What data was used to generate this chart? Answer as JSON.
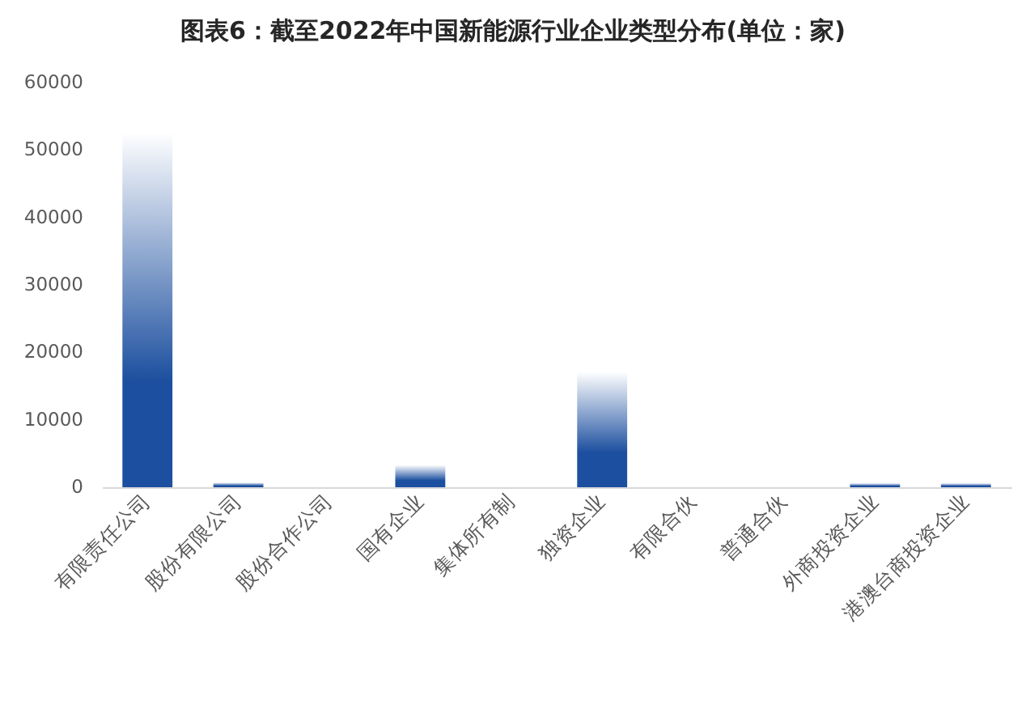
{
  "chart_data": {
    "type": "bar",
    "title": "图表6：截至2022年中国新能源行业企业类型分布(单位：家)",
    "categories": [
      "有限责任公司",
      "股份有限公司",
      "股份合作公司",
      "国有企业",
      "集体所有制",
      "独资企业",
      "有限合伙",
      "普通合伙",
      "外商投资企业",
      "港澳台商投资企业"
    ],
    "values": [
      52600,
      700,
      0,
      3300,
      0,
      17100,
      0,
      0,
      600,
      600
    ],
    "color": "#1c4f9f",
    "ylim": [
      0,
      60000
    ],
    "yticks": [
      0,
      10000,
      20000,
      30000,
      40000,
      50000,
      60000
    ]
  }
}
